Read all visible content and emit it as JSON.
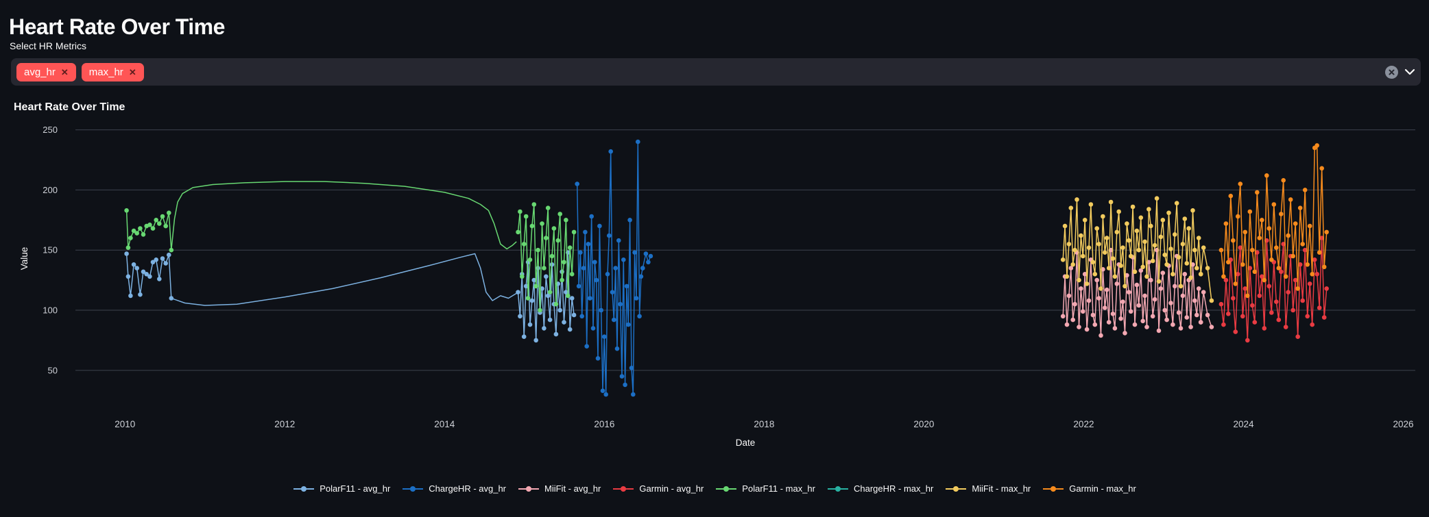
{
  "app": {
    "title": "Heart Rate Over Time"
  },
  "multiselect": {
    "label": "Select HR Metrics",
    "selected": [
      "avg_hr",
      "max_hr"
    ],
    "chip_color": "#ff5555",
    "chip_remove_glyph": "✕",
    "widget_bg": "#262730"
  },
  "theme": {
    "background": "#0e1117",
    "text": "#fafafa",
    "grid": "#3d434e",
    "tick_text": "#ced1d7"
  },
  "chart_data": {
    "type": "line",
    "title": "Heart Rate Over Time",
    "xlabel": "Date",
    "ylabel": "Value",
    "x_ticks": [
      2010,
      2012,
      2014,
      2016,
      2018,
      2020,
      2022,
      2024,
      2026
    ],
    "y_ticks": [
      50,
      100,
      150,
      200,
      250
    ],
    "xlim": [
      2009.38,
      2026.15
    ],
    "ylim": [
      22,
      264
    ],
    "grid": "horizontal-only",
    "legend_position": "bottom-center",
    "series": [
      {
        "name": "PolarF11 - avg_hr",
        "color": "#7db2e2",
        "segments": [
          {
            "markers": true,
            "points": [
              [
                2010.02,
                147
              ],
              [
                2010.04,
                128
              ],
              [
                2010.07,
                112
              ],
              [
                2010.11,
                138
              ],
              [
                2010.15,
                135
              ],
              [
                2010.19,
                113
              ],
              [
                2010.23,
                132
              ],
              [
                2010.27,
                130
              ],
              [
                2010.31,
                128
              ],
              [
                2010.35,
                140
              ],
              [
                2010.39,
                142
              ],
              [
                2010.43,
                126
              ],
              [
                2010.47,
                143
              ],
              [
                2010.51,
                139
              ],
              [
                2010.55,
                146
              ],
              [
                2010.58,
                110
              ]
            ]
          },
          {
            "markers": false,
            "points": [
              [
                2010.58,
                110
              ],
              [
                2010.75,
                106
              ],
              [
                2011.0,
                104
              ],
              [
                2011.4,
                105
              ],
              [
                2012.0,
                111
              ],
              [
                2012.6,
                118
              ],
              [
                2013.2,
                127
              ],
              [
                2013.8,
                137
              ],
              [
                2014.2,
                144
              ],
              [
                2014.38,
                147
              ],
              [
                2014.45,
                135
              ],
              [
                2014.52,
                115
              ],
              [
                2014.6,
                108
              ],
              [
                2014.7,
                112
              ],
              [
                2014.8,
                110
              ],
              [
                2014.9,
                114
              ]
            ]
          },
          {
            "markers": true,
            "x_start": 2014.92,
            "x_step": 0.025,
            "values": [
              115,
              95,
              130,
              78,
              120,
              140,
              88,
              108,
              125,
              75,
              135,
              98,
              118,
              85,
              128,
              112,
              92,
              138,
              105,
              80,
              122,
              100,
              132,
              90,
              115,
              148,
              84,
              110,
              96
            ]
          }
        ]
      },
      {
        "name": "ChargeHR - avg_hr",
        "color": "#1c6fc5",
        "segments": [
          {
            "markers": true,
            "x_start": 2015.66,
            "x_step": 0.02,
            "values": [
              205,
              120,
              148,
              95,
              135,
              165,
              70,
              155,
              110,
              178,
              85,
              140,
              125,
              60,
              170,
              100,
              33,
              78,
              30,
              130,
              162,
              232,
              115,
              92,
              135,
              68,
              158,
              105,
              45,
              142,
              38,
              120,
              88,
              175,
              52,
              30,
              148,
              110,
              240,
              95,
              128,
              135
            ]
          },
          {
            "markers": true,
            "points": [
              [
                2016.48,
                135
              ],
              [
                2016.52,
                147
              ],
              [
                2016.55,
                140
              ],
              [
                2016.58,
                145
              ]
            ]
          }
        ]
      },
      {
        "name": "MiiFit - avg_hr",
        "color": "#f3a8b2",
        "segments": [
          {
            "markers": true,
            "x_start": 2021.74,
            "x_step": 0.025,
            "values": [
              95,
              128,
              88,
              112,
              135,
              92,
              105,
              148,
              86,
              118,
              99,
              130,
              84,
              108,
              142,
              96,
              88,
              125,
              110,
              79,
              134,
              102,
              117,
              90,
              150,
              97,
              85,
              122,
              138,
              93,
              107,
              81,
              129,
              115,
              99,
              144,
              88,
              121,
              104,
              133,
              91,
              112,
              86,
              140,
              125,
              95,
              109,
              150,
              83,
              118,
              131,
              100,
              92,
              137,
              106,
              88,
              120,
              145,
              98,
              85,
              112,
              130,
              94,
              125,
              86,
              138,
              108,
              96,
              118,
              90
            ]
          },
          {
            "markers": true,
            "points": [
              [
                2023.465,
                90
              ],
              [
                2023.5,
                115
              ],
              [
                2023.55,
                96
              ],
              [
                2023.6,
                86
              ]
            ]
          }
        ]
      },
      {
        "name": "Garmin - avg_hr",
        "color": "#e93b42",
        "segments": [
          {
            "markers": true,
            "x_start": 2023.72,
            "x_step": 0.03,
            "values": [
              105,
              88,
              125,
              97,
              142,
              110,
              82,
              130,
              152,
              95,
              118,
              75,
              135,
              104,
              90,
              148,
              112,
              128,
              85,
              158,
              120,
              98,
              140,
              107,
              92,
              132,
              155,
              86,
              115,
              145,
              100,
              125,
              78,
              138,
              108,
              150,
              95,
              122,
              88,
              142,
              130,
              102,
              160,
              94,
              118
            ]
          }
        ]
      },
      {
        "name": "PolarF11 - max_hr",
        "color": "#68d872",
        "segments": [
          {
            "markers": true,
            "points": [
              [
                2010.02,
                183
              ],
              [
                2010.04,
                152
              ],
              [
                2010.07,
                160
              ],
              [
                2010.11,
                166
              ],
              [
                2010.15,
                164
              ],
              [
                2010.19,
                168
              ],
              [
                2010.23,
                163
              ],
              [
                2010.27,
                170
              ],
              [
                2010.31,
                171
              ],
              [
                2010.35,
                168
              ],
              [
                2010.39,
                175
              ],
              [
                2010.43,
                172
              ],
              [
                2010.47,
                178
              ],
              [
                2010.51,
                170
              ],
              [
                2010.55,
                181
              ],
              [
                2010.58,
                150
              ]
            ]
          },
          {
            "markers": false,
            "points": [
              [
                2010.58,
                150
              ],
              [
                2010.62,
                176
              ],
              [
                2010.66,
                190
              ],
              [
                2010.72,
                197
              ],
              [
                2010.85,
                202
              ],
              [
                2011.1,
                204.5
              ],
              [
                2011.5,
                206
              ],
              [
                2012.0,
                207
              ],
              [
                2012.5,
                207
              ],
              [
                2013.0,
                205.5
              ],
              [
                2013.5,
                203
              ],
              [
                2014.0,
                198
              ],
              [
                2014.3,
                193
              ],
              [
                2014.45,
                188
              ],
              [
                2014.55,
                183
              ],
              [
                2014.62,
                172
              ],
              [
                2014.7,
                155
              ],
              [
                2014.78,
                151
              ],
              [
                2014.85,
                154
              ],
              [
                2014.9,
                157
              ]
            ]
          },
          {
            "markers": true,
            "x_start": 2014.92,
            "x_step": 0.025,
            "values": [
              165,
              182,
              128,
              155,
              178,
              110,
              142,
              170,
              188,
              120,
              150,
              100,
              172,
              135,
              160,
              185,
              115,
              145,
              168,
              105,
              158,
              180,
              125,
              140,
              175,
              112,
              152,
              130,
              165
            ]
          }
        ]
      },
      {
        "name": "ChargeHR - max_hr",
        "color": "#28b2a2",
        "segments": []
      },
      {
        "name": "MiiFit - max_hr",
        "color": "#f2cb5e",
        "segments": [
          {
            "markers": true,
            "x_start": 2021.74,
            "x_step": 0.025,
            "values": [
              142,
              170,
              128,
              155,
              185,
              138,
              150,
              192,
              125,
              162,
              145,
              175,
              122,
              152,
              188,
              140,
              130,
              168,
              155,
              118,
              178,
              148,
              160,
              135,
              190,
              143,
              128,
              165,
              182,
              137,
              152,
              120,
              172,
              158,
              145,
              186,
              132,
              166,
              150,
              177,
              136,
              157,
              128,
              184,
              170,
              141,
              154,
              193,
              124,
              161,
              175,
              146,
              138,
              181,
              151,
              130,
              163,
              189,
              144,
              120,
              155,
              176,
              139,
              168,
              127,
              183,
              150,
              135,
              160,
              130
            ]
          },
          {
            "markers": true,
            "points": [
              [
                2023.465,
                130
              ],
              [
                2023.5,
                152
              ],
              [
                2023.55,
                135
              ],
              [
                2023.6,
                108
              ]
            ]
          }
        ]
      },
      {
        "name": "Garmin - max_hr",
        "color": "#f68b1d",
        "segments": [
          {
            "markers": true,
            "x_start": 2023.72,
            "x_step": 0.03,
            "values": [
              150,
              128,
              172,
              140,
              195,
              158,
              122,
              178,
              205,
              138,
              165,
              112,
              182,
              150,
              132,
              198,
              160,
              175,
              125,
              212,
              168,
              142,
              188,
              152,
              135,
              180,
              208,
              128,
              162,
              192,
              145,
              172,
              118,
              185,
              155,
              200,
              138,
              170,
              130,
              235,
              237,
              148,
              218,
              136,
              165
            ]
          }
        ]
      }
    ]
  }
}
